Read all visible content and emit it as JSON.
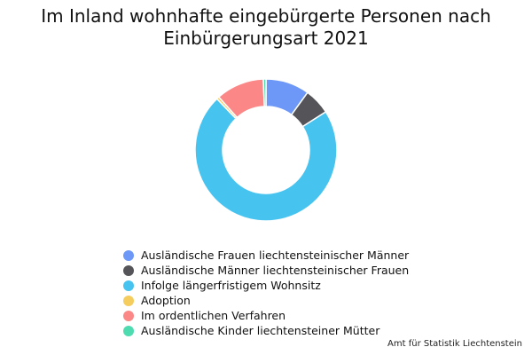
{
  "chart_data": {
    "type": "pie",
    "variant": "donut",
    "title_line1": "Im Inland wohnhafte eingebürgerte Personen nach",
    "title_line2": "Einbürgerungsart 2021",
    "categories": [
      "Ausländische Frauen liechtensteinischer Männer",
      "Ausländische Männer liechtensteinischer Frauen",
      "Infolge längerfristigem Wohnsitz",
      "Adoption",
      "Im ordentlichen Verfahren",
      "Ausländische Kinder liechtensteiner Mütter"
    ],
    "values": [
      10,
      6,
      72,
      0.6,
      11,
      0.6
    ],
    "colors": [
      "#6d98f8",
      "#555559",
      "#47c3f0",
      "#f4cd5e",
      "#fb8787",
      "#4fdbb0"
    ],
    "legend_position": "bottom"
  },
  "source": "Amt für Statistik Liechtenstein"
}
